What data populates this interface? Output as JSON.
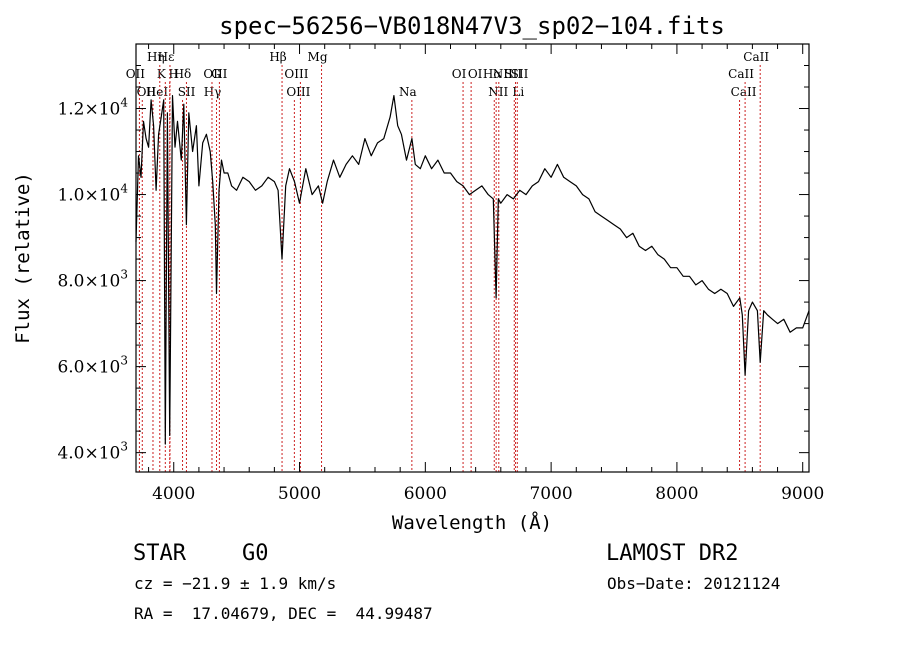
{
  "chart_data": {
    "type": "line",
    "title": "spec−56256−VB018N47V3_sp02−104.fits",
    "xlabel": "Wavelength (Å)",
    "ylabel": "Flux (relative)",
    "xlim": [
      3700,
      9050
    ],
    "ylim": [
      3550,
      13500
    ],
    "x_ticks": [
      4000,
      5000,
      6000,
      7000,
      8000,
      9000
    ],
    "x_tick_labels": [
      "4000",
      "5000",
      "6000",
      "7000",
      "8000",
      "9000"
    ],
    "y_ticks": [
      4000,
      6000,
      8000,
      10000,
      12000
    ],
    "y_tick_labels": [
      {
        "base": "4.0×10",
        "exp": "3"
      },
      {
        "base": "6.0×10",
        "exp": "3"
      },
      {
        "base": "8.0×10",
        "exp": "3"
      },
      {
        "base": "1.0×10",
        "exp": "4"
      },
      {
        "base": "1.2×10",
        "exp": "4"
      }
    ],
    "series": [
      {
        "x": [
          3700,
          3720,
          3740,
          3760,
          3780,
          3800,
          3820,
          3840,
          3860,
          3880,
          3900,
          3920,
          3933,
          3950,
          3968,
          3990,
          4010,
          4030,
          4060,
          4080,
          4101,
          4120,
          4150,
          4180,
          4200,
          4230,
          4260,
          4290,
          4310,
          4330,
          4340,
          4360,
          4380,
          4400,
          4430,
          4460,
          4500,
          4550,
          4600,
          4650,
          4700,
          4750,
          4800,
          4830,
          4861,
          4890,
          4920,
          4960,
          5000,
          5050,
          5100,
          5150,
          5183,
          5220,
          5270,
          5320,
          5370,
          5420,
          5470,
          5520,
          5570,
          5620,
          5670,
          5720,
          5750,
          5780,
          5810,
          5850,
          5893,
          5920,
          5960,
          6000,
          6050,
          6100,
          6150,
          6200,
          6250,
          6300,
          6350,
          6400,
          6450,
          6500,
          6540,
          6563,
          6580,
          6600,
          6650,
          6700,
          6750,
          6800,
          6850,
          6900,
          6950,
          7000,
          7050,
          7100,
          7150,
          7200,
          7250,
          7300,
          7350,
          7400,
          7450,
          7500,
          7550,
          7600,
          7650,
          7700,
          7750,
          7800,
          7850,
          7900,
          7950,
          8000,
          8050,
          8100,
          8150,
          8200,
          8250,
          8300,
          8350,
          8400,
          8450,
          8500,
          8520,
          8542,
          8570,
          8600,
          8640,
          8662,
          8690,
          8720,
          8760,
          8800,
          8850,
          8900,
          8950,
          9000,
          9050
        ],
        "values": [
          8900,
          10900,
          10400,
          11700,
          11300,
          11100,
          12200,
          11600,
          10100,
          11400,
          11800,
          12200,
          4200,
          11900,
          4400,
          12300,
          11100,
          11700,
          10800,
          12100,
          9300,
          11900,
          11000,
          11600,
          10200,
          11200,
          11400,
          11000,
          10300,
          9300,
          7700,
          10100,
          10800,
          10500,
          10500,
          10200,
          10100,
          10400,
          10300,
          10100,
          10200,
          10400,
          10300,
          10100,
          8500,
          10200,
          10600,
          10300,
          9800,
          10600,
          10000,
          10200,
          9800,
          10300,
          10800,
          10400,
          10700,
          10900,
          10700,
          11300,
          10900,
          11200,
          11300,
          11800,
          12300,
          11600,
          11400,
          10800,
          11300,
          10700,
          10600,
          10900,
          10600,
          10800,
          10500,
          10500,
          10300,
          10200,
          10000,
          10100,
          10200,
          10000,
          9900,
          7600,
          9900,
          9800,
          10000,
          9900,
          10100,
          10000,
          10200,
          10300,
          10600,
          10400,
          10700,
          10400,
          10300,
          10200,
          10000,
          9900,
          9600,
          9500,
          9400,
          9300,
          9200,
          9000,
          9100,
          8800,
          8700,
          8800,
          8600,
          8500,
          8300,
          8300,
          8100,
          8100,
          7900,
          8000,
          7800,
          7700,
          7800,
          7700,
          7400,
          7600,
          7200,
          5800,
          7300,
          7500,
          7300,
          6100,
          7300,
          7200,
          7100,
          7000,
          7100,
          6800,
          6900,
          6900,
          7300
        ]
      }
    ],
    "lines": [
      {
        "w": 3727,
        "label": "OII",
        "row": 2
      },
      {
        "w": 3750,
        "label": "OII",
        "row": 3
      },
      {
        "w": 3835,
        "label": "HeI",
        "row": 3
      },
      {
        "w": 3889,
        "label": "Hη",
        "row": 0
      },
      {
        "w": 3933,
        "label": "K",
        "row": 2
      },
      {
        "w": 3968,
        "label": "H",
        "row": 1
      },
      {
        "w": 3970,
        "label": "Hε",
        "row": 0
      },
      {
        "w": 4070,
        "label": "SII",
        "row": 3
      },
      {
        "w": 4101,
        "label": "Hδ",
        "row": 2
      },
      {
        "w": 4304,
        "label": "G",
        "row": 1
      },
      {
        "w": 4340,
        "label": "Hγ",
        "row": 4
      },
      {
        "w": 4363,
        "label": "OIII",
        "row": 2
      },
      {
        "w": 4861,
        "label": "Hβ",
        "row": 0
      },
      {
        "w": 4959,
        "label": "OIII",
        "row": 3
      },
      {
        "w": 5007,
        "label": "OIII",
        "row": 2
      },
      {
        "w": 5175,
        "label": "Mg",
        "row": 0
      },
      {
        "w": 5893,
        "label": "Na",
        "row": 4
      },
      {
        "w": 6300,
        "label": "OI",
        "row": 2
      },
      {
        "w": 6364,
        "label": "OI",
        "row": 1
      },
      {
        "w": 6548,
        "label": "NII",
        "row": 3
      },
      {
        "w": 6563,
        "label": "Hα",
        "row": 2
      },
      {
        "w": 6584,
        "label": "NII",
        "row": 1
      },
      {
        "w": 6707,
        "label": "Li",
        "row": 3
      },
      {
        "w": 6717,
        "label": "SII",
        "row": 1
      },
      {
        "w": 6731,
        "label": "SII",
        "row": 2
      },
      {
        "w": 8498,
        "label": "CaII",
        "row": 3
      },
      {
        "w": 8542,
        "label": "CaII",
        "row": 2
      },
      {
        "w": 8662,
        "label": "CaII",
        "row": 0
      }
    ]
  },
  "info": {
    "object_class": "STAR",
    "subclass": "G0",
    "survey": "LAMOST DR2",
    "redshift": "cz = −21.9 ± 1.9 km/s",
    "obs_date": "Obs−Date: 20121124",
    "coords": "RA =  17.04679, DEC =  44.99487"
  }
}
